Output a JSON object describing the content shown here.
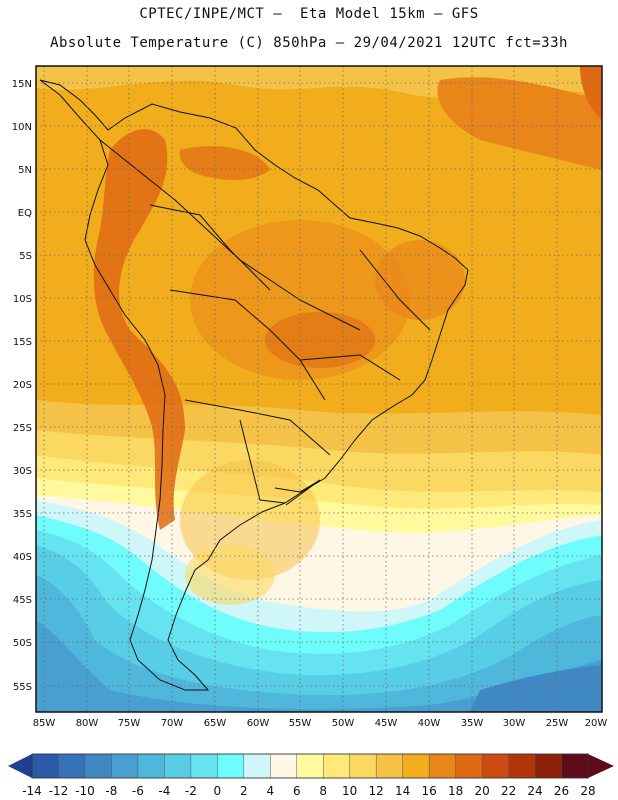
{
  "title": {
    "line1": "CPTEC/INPE/MCT –  Eta Model 15km – GFS",
    "line2": "Absolute Temperature (C) 850hPa – 29/04/2021 12UTC fct=33h"
  },
  "map": {
    "lon_range": [
      -86,
      -20
    ],
    "lat_range": [
      -58,
      17
    ],
    "lat_labels": [
      "15N",
      "10N",
      "5N",
      "EQ",
      "5S",
      "10S",
      "15S",
      "20S",
      "25S",
      "30S",
      "35S",
      "40S",
      "45S",
      "50S",
      "55S"
    ],
    "lon_labels": [
      "85W",
      "80W",
      "75W",
      "70W",
      "65W",
      "60W",
      "55W",
      "50W",
      "45W",
      "40W",
      "35W",
      "30W",
      "25W",
      "20W"
    ],
    "gridlines": "dotted"
  },
  "colorbar": {
    "labels": [
      "-14",
      "-12",
      "-10",
      "-8",
      "-6",
      "-4",
      "-2",
      "0",
      "2",
      "4",
      "6",
      "8",
      "10",
      "12",
      "14",
      "16",
      "18",
      "20",
      "22",
      "24",
      "26",
      "28"
    ],
    "colors": [
      "#1f3f95",
      "#2a5aa8",
      "#3572b8",
      "#3f88c4",
      "#48a0d0",
      "#4fb7db",
      "#58cde6",
      "#66e3f1",
      "#6ffcfc",
      "#cff7fa",
      "#fff7e6",
      "#fffa9e",
      "#ffe97a",
      "#fbd861",
      "#f5c248",
      "#f1ad1c",
      "#e9861a",
      "#e06a14",
      "#cc4b10",
      "#b3360b",
      "#8e2009",
      "#5e0b1a"
    ]
  }
}
